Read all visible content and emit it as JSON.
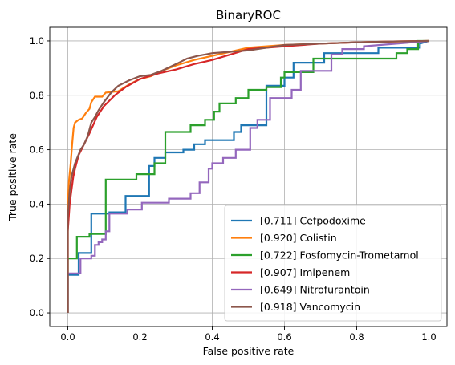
{
  "chart_data": {
    "type": "line",
    "title": "BinaryROC",
    "xlabel": "False positive rate",
    "ylabel": "True positive rate",
    "xlim": [
      -0.05,
      1.05
    ],
    "ylim": [
      -0.05,
      1.05
    ],
    "x_ticks": [
      "0.0",
      "0.2",
      "0.4",
      "0.6",
      "0.8",
      "1.0"
    ],
    "y_ticks": [
      "0.0",
      "0.2",
      "0.4",
      "0.6",
      "0.8",
      "1.0"
    ],
    "grid": true,
    "legend_position": "lower-right",
    "series": [
      {
        "name": "[0.711] Cefpodoxime",
        "color": "#1f77b4",
        "points": [
          [
            0,
            0
          ],
          [
            0,
            0.14
          ],
          [
            0.03,
            0.14
          ],
          [
            0.03,
            0.22
          ],
          [
            0.065,
            0.22
          ],
          [
            0.065,
            0.365
          ],
          [
            0.115,
            0.365
          ],
          [
            0.115,
            0.37
          ],
          [
            0.16,
            0.37
          ],
          [
            0.16,
            0.43
          ],
          [
            0.225,
            0.43
          ],
          [
            0.225,
            0.54
          ],
          [
            0.24,
            0.54
          ],
          [
            0.24,
            0.57
          ],
          [
            0.27,
            0.57
          ],
          [
            0.27,
            0.59
          ],
          [
            0.32,
            0.59
          ],
          [
            0.32,
            0.6
          ],
          [
            0.35,
            0.6
          ],
          [
            0.35,
            0.62
          ],
          [
            0.38,
            0.62
          ],
          [
            0.38,
            0.635
          ],
          [
            0.46,
            0.635
          ],
          [
            0.46,
            0.665
          ],
          [
            0.48,
            0.665
          ],
          [
            0.48,
            0.69
          ],
          [
            0.55,
            0.69
          ],
          [
            0.55,
            0.835
          ],
          [
            0.6,
            0.835
          ],
          [
            0.6,
            0.865
          ],
          [
            0.625,
            0.865
          ],
          [
            0.625,
            0.92
          ],
          [
            0.71,
            0.92
          ],
          [
            0.71,
            0.955
          ],
          [
            0.86,
            0.955
          ],
          [
            0.86,
            0.975
          ],
          [
            0.975,
            0.975
          ],
          [
            0.975,
            0.99
          ],
          [
            1,
            1
          ]
        ]
      },
      {
        "name": "[0.920] Colistin",
        "color": "#ff7f0e",
        "points": [
          [
            0,
            0
          ],
          [
            0,
            0.4
          ],
          [
            0.003,
            0.48
          ],
          [
            0.008,
            0.55
          ],
          [
            0.012,
            0.62
          ],
          [
            0.016,
            0.68
          ],
          [
            0.02,
            0.7
          ],
          [
            0.03,
            0.71
          ],
          [
            0.04,
            0.715
          ],
          [
            0.05,
            0.735
          ],
          [
            0.06,
            0.75
          ],
          [
            0.065,
            0.775
          ],
          [
            0.075,
            0.795
          ],
          [
            0.095,
            0.795
          ],
          [
            0.105,
            0.81
          ],
          [
            0.14,
            0.815
          ],
          [
            0.17,
            0.84
          ],
          [
            0.2,
            0.86
          ],
          [
            0.23,
            0.87
          ],
          [
            0.26,
            0.89
          ],
          [
            0.3,
            0.91
          ],
          [
            0.35,
            0.93
          ],
          [
            0.4,
            0.945
          ],
          [
            0.45,
            0.96
          ],
          [
            0.5,
            0.975
          ],
          [
            0.6,
            0.985
          ],
          [
            0.7,
            0.99
          ],
          [
            0.8,
            0.995
          ],
          [
            0.9,
            0.998
          ],
          [
            1,
            1
          ]
        ]
      },
      {
        "name": "[0.722] Fosfomycin-Trometamol",
        "color": "#2ca02c",
        "points": [
          [
            0,
            0
          ],
          [
            0,
            0.2
          ],
          [
            0.025,
            0.2
          ],
          [
            0.025,
            0.28
          ],
          [
            0.06,
            0.28
          ],
          [
            0.06,
            0.29
          ],
          [
            0.105,
            0.29
          ],
          [
            0.105,
            0.49
          ],
          [
            0.19,
            0.49
          ],
          [
            0.19,
            0.51
          ],
          [
            0.24,
            0.51
          ],
          [
            0.24,
            0.55
          ],
          [
            0.27,
            0.55
          ],
          [
            0.27,
            0.665
          ],
          [
            0.34,
            0.665
          ],
          [
            0.34,
            0.69
          ],
          [
            0.38,
            0.69
          ],
          [
            0.38,
            0.71
          ],
          [
            0.405,
            0.71
          ],
          [
            0.405,
            0.74
          ],
          [
            0.42,
            0.74
          ],
          [
            0.42,
            0.77
          ],
          [
            0.465,
            0.77
          ],
          [
            0.465,
            0.79
          ],
          [
            0.5,
            0.79
          ],
          [
            0.5,
            0.82
          ],
          [
            0.55,
            0.82
          ],
          [
            0.55,
            0.83
          ],
          [
            0.59,
            0.83
          ],
          [
            0.59,
            0.865
          ],
          [
            0.6,
            0.865
          ],
          [
            0.6,
            0.885
          ],
          [
            0.68,
            0.885
          ],
          [
            0.68,
            0.935
          ],
          [
            0.91,
            0.935
          ],
          [
            0.91,
            0.955
          ],
          [
            0.94,
            0.955
          ],
          [
            0.94,
            0.97
          ],
          [
            0.97,
            0.97
          ],
          [
            0.97,
            1
          ],
          [
            1,
            1
          ]
        ]
      },
      {
        "name": "[0.907] Imipenem",
        "color": "#d62728",
        "points": [
          [
            0,
            0
          ],
          [
            0,
            0.3
          ],
          [
            0.005,
            0.4
          ],
          [
            0.01,
            0.45
          ],
          [
            0.015,
            0.5
          ],
          [
            0.02,
            0.53
          ],
          [
            0.03,
            0.58
          ],
          [
            0.045,
            0.62
          ],
          [
            0.06,
            0.66
          ],
          [
            0.08,
            0.72
          ],
          [
            0.1,
            0.76
          ],
          [
            0.13,
            0.8
          ],
          [
            0.16,
            0.83
          ],
          [
            0.2,
            0.86
          ],
          [
            0.25,
            0.88
          ],
          [
            0.3,
            0.895
          ],
          [
            0.35,
            0.915
          ],
          [
            0.4,
            0.93
          ],
          [
            0.45,
            0.95
          ],
          [
            0.5,
            0.97
          ],
          [
            0.6,
            0.98
          ],
          [
            0.7,
            0.99
          ],
          [
            0.8,
            0.995
          ],
          [
            0.9,
            0.998
          ],
          [
            1,
            1
          ]
        ]
      },
      {
        "name": "[0.649] Nitrofurantoin",
        "color": "#9467bd",
        "points": [
          [
            0,
            0
          ],
          [
            0,
            0.145
          ],
          [
            0.035,
            0.145
          ],
          [
            0.035,
            0.2
          ],
          [
            0.065,
            0.2
          ],
          [
            0.065,
            0.21
          ],
          [
            0.075,
            0.21
          ],
          [
            0.075,
            0.25
          ],
          [
            0.085,
            0.25
          ],
          [
            0.085,
            0.26
          ],
          [
            0.095,
            0.26
          ],
          [
            0.095,
            0.27
          ],
          [
            0.105,
            0.27
          ],
          [
            0.105,
            0.3
          ],
          [
            0.115,
            0.3
          ],
          [
            0.115,
            0.365
          ],
          [
            0.165,
            0.365
          ],
          [
            0.165,
            0.38
          ],
          [
            0.205,
            0.38
          ],
          [
            0.205,
            0.405
          ],
          [
            0.28,
            0.405
          ],
          [
            0.28,
            0.42
          ],
          [
            0.34,
            0.42
          ],
          [
            0.34,
            0.44
          ],
          [
            0.365,
            0.44
          ],
          [
            0.365,
            0.48
          ],
          [
            0.39,
            0.48
          ],
          [
            0.39,
            0.53
          ],
          [
            0.4,
            0.53
          ],
          [
            0.4,
            0.55
          ],
          [
            0.43,
            0.55
          ],
          [
            0.43,
            0.57
          ],
          [
            0.465,
            0.57
          ],
          [
            0.465,
            0.6
          ],
          [
            0.505,
            0.6
          ],
          [
            0.505,
            0.68
          ],
          [
            0.525,
            0.68
          ],
          [
            0.525,
            0.71
          ],
          [
            0.56,
            0.71
          ],
          [
            0.56,
            0.79
          ],
          [
            0.62,
            0.79
          ],
          [
            0.62,
            0.82
          ],
          [
            0.645,
            0.82
          ],
          [
            0.645,
            0.89
          ],
          [
            0.73,
            0.89
          ],
          [
            0.73,
            0.95
          ],
          [
            0.76,
            0.95
          ],
          [
            0.76,
            0.97
          ],
          [
            0.82,
            0.97
          ],
          [
            0.82,
            0.98
          ],
          [
            1,
            1
          ]
        ]
      },
      {
        "name": "[0.918] Vancomycin",
        "color": "#8c564b",
        "points": [
          [
            0,
            0
          ],
          [
            0,
            0.35
          ],
          [
            0.005,
            0.45
          ],
          [
            0.01,
            0.5
          ],
          [
            0.02,
            0.55
          ],
          [
            0.035,
            0.6
          ],
          [
            0.045,
            0.62
          ],
          [
            0.055,
            0.65
          ],
          [
            0.065,
            0.7
          ],
          [
            0.075,
            0.72
          ],
          [
            0.085,
            0.745
          ],
          [
            0.1,
            0.775
          ],
          [
            0.12,
            0.81
          ],
          [
            0.14,
            0.835
          ],
          [
            0.17,
            0.855
          ],
          [
            0.2,
            0.87
          ],
          [
            0.23,
            0.875
          ],
          [
            0.26,
            0.89
          ],
          [
            0.3,
            0.915
          ],
          [
            0.33,
            0.935
          ],
          [
            0.36,
            0.945
          ],
          [
            0.4,
            0.955
          ],
          [
            0.45,
            0.96
          ],
          [
            0.5,
            0.965
          ],
          [
            0.55,
            0.975
          ],
          [
            0.6,
            0.985
          ],
          [
            0.7,
            0.99
          ],
          [
            0.8,
            0.995
          ],
          [
            0.9,
            0.998
          ],
          [
            1,
            1
          ]
        ]
      }
    ]
  }
}
